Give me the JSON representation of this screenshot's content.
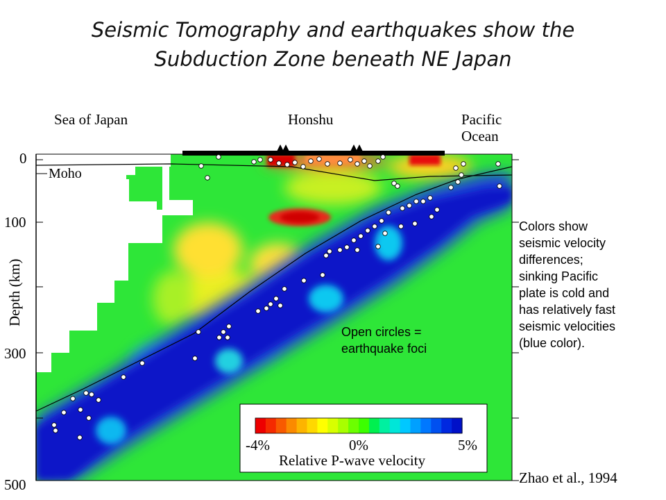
{
  "title": {
    "line1": "Seismic Tomography and earthquakes show the",
    "line2": "Subduction Zone beneath NE Japan"
  },
  "regions": {
    "sea_of_japan": "Sea of Japan",
    "honshu": "Honshu",
    "pacific_line1": "Pacific",
    "pacific_line2": "Ocean"
  },
  "axis": {
    "label": "Depth (km)",
    "ticks": [
      "0",
      "100",
      "300",
      "500"
    ],
    "depth_range": [
      0,
      500
    ]
  },
  "moho_label": "Moho",
  "colorbar": {
    "min_label": "-4%",
    "mid_label": "0%",
    "max_label": "5%",
    "title": "Relative P-wave velocity",
    "colors": [
      "#ee0000",
      "#f52a00",
      "#f85a00",
      "#fb8a00",
      "#fdb400",
      "#ffd800",
      "#ffff00",
      "#d8ff00",
      "#a8ff00",
      "#6cff00",
      "#3cff00",
      "#00f050",
      "#00f0a0",
      "#00e6d8",
      "#00c8ff",
      "#00a0ff",
      "#0078ff",
      "#0050f0",
      "#0028e0",
      "#0010c8"
    ]
  },
  "annotations": {
    "foci_line1": "Open circles =",
    "foci_line2": "earthquake foci",
    "side_lines": [
      "Colors show",
      "seismic velocity",
      "differences;",
      "sinking Pacific",
      "plate is cold and",
      "has relatively fast",
      "seismic velocities",
      "(blue color)."
    ]
  },
  "citation": "Zhao et al., 1994"
}
